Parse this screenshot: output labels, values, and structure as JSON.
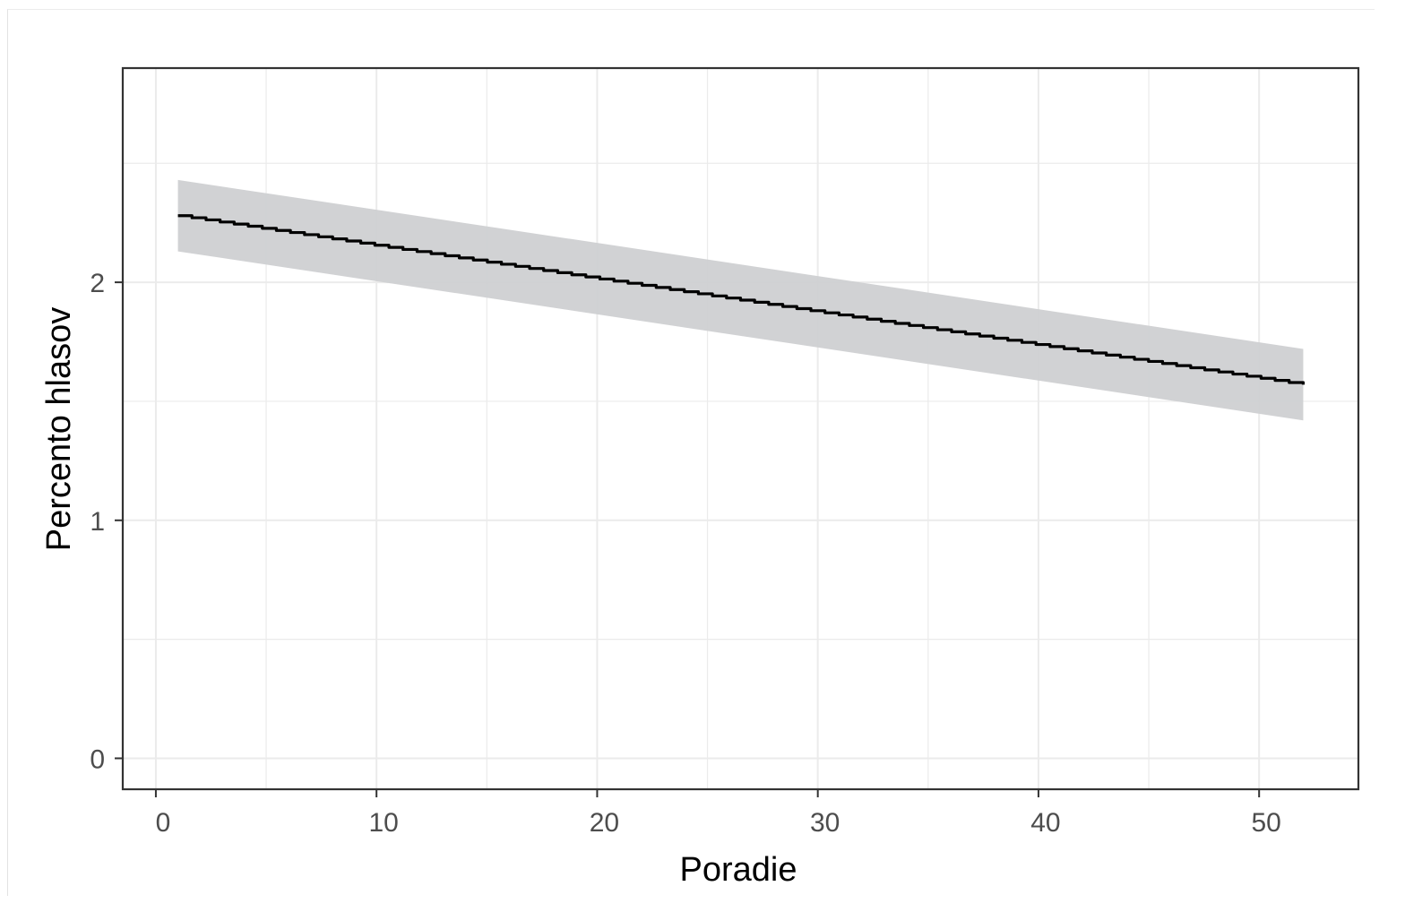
{
  "chart_data": {
    "type": "line",
    "title": "",
    "xlabel": "Poradie",
    "ylabel": "Percento hlasov",
    "xlim": [
      -1.5,
      54.5
    ],
    "ylim": [
      -0.13,
      2.9
    ],
    "x_ticks": [
      {
        "value": 0,
        "label": "0"
      },
      {
        "value": 10,
        "label": "10"
      },
      {
        "value": 20,
        "label": "20"
      },
      {
        "value": 30,
        "label": "30"
      },
      {
        "value": 40,
        "label": "40"
      },
      {
        "value": 50,
        "label": "50"
      }
    ],
    "y_ticks": [
      {
        "value": 0,
        "label": "0"
      },
      {
        "value": 1,
        "label": "1"
      },
      {
        "value": 2,
        "label": "2"
      }
    ],
    "x_minor_grid": [
      5,
      15,
      25,
      35,
      45
    ],
    "y_minor_grid": [
      0.5,
      1.5,
      2.5
    ],
    "grid": true,
    "series": [
      {
        "x": [
          1,
          52
        ],
        "y": [
          2.28,
          1.57
        ],
        "ci_lower": [
          2.13,
          1.42
        ],
        "ci_upper": [
          2.43,
          1.72
        ]
      }
    ],
    "colors": {
      "line": "#000000",
      "ribbon": "#cfd0d2",
      "grid": "#ebebeb",
      "panel_border": "#333333"
    }
  }
}
